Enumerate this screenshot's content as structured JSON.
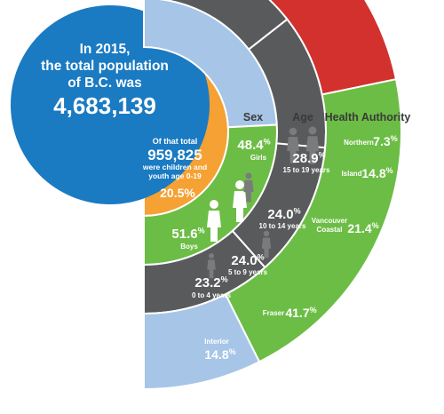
{
  "chart_data": {
    "type": "pie",
    "center_circle": {
      "line1": "In 2015,",
      "line2": "the total population",
      "line3": "of B.C. was",
      "total": "4,683,139",
      "color": "#1a7ac2"
    },
    "youth_segment": {
      "line1": "Of that total",
      "value": "959,825",
      "line2": "were children and",
      "line3": "youth age 0-19",
      "percent": "20.5%",
      "share": 20.5,
      "color": "#f5a133"
    },
    "headers": {
      "sex": "Sex",
      "age": "Age",
      "health": "Health Authority"
    },
    "sex": [
      {
        "name": "Girls",
        "value": 48.4,
        "pct": "48.4",
        "color": "#a7c5e6"
      },
      {
        "name": "Boys",
        "value": 51.6,
        "pct": "51.6",
        "color": "#6cbd45"
      }
    ],
    "age": [
      {
        "name": "15 to 19 years",
        "value": 28.9,
        "pct": "28.9",
        "color": "#595a5c"
      },
      {
        "name": "10 to 14 years",
        "value": 24.0,
        "pct": "24.0",
        "color": "#595a5c"
      },
      {
        "name": "5 to 9 years",
        "value": 24.0,
        "pct": "24.0",
        "color": "#595a5c"
      },
      {
        "name": "0 to 4 years",
        "value": 23.2,
        "pct": "23.2",
        "color": "#595a5c"
      }
    ],
    "health_authority": [
      {
        "name": "Northern",
        "value": 7.3,
        "pct": "7.3",
        "color": "#6a3a96"
      },
      {
        "name": "Island",
        "value": 14.8,
        "pct": "14.8",
        "color": "#f5a133"
      },
      {
        "name": "Vancouver Coastal",
        "line1": "Vancouver",
        "line2": "Coastal",
        "value": 21.4,
        "pct": "21.4",
        "color": "#d2312e"
      },
      {
        "name": "Fraser",
        "value": 41.7,
        "pct": "41.7",
        "color": "#6cbd45"
      },
      {
        "name": "Interior",
        "value": 14.8,
        "pct": "14.8",
        "color": "#a7c5e6"
      }
    ],
    "percent_sign": "%"
  }
}
